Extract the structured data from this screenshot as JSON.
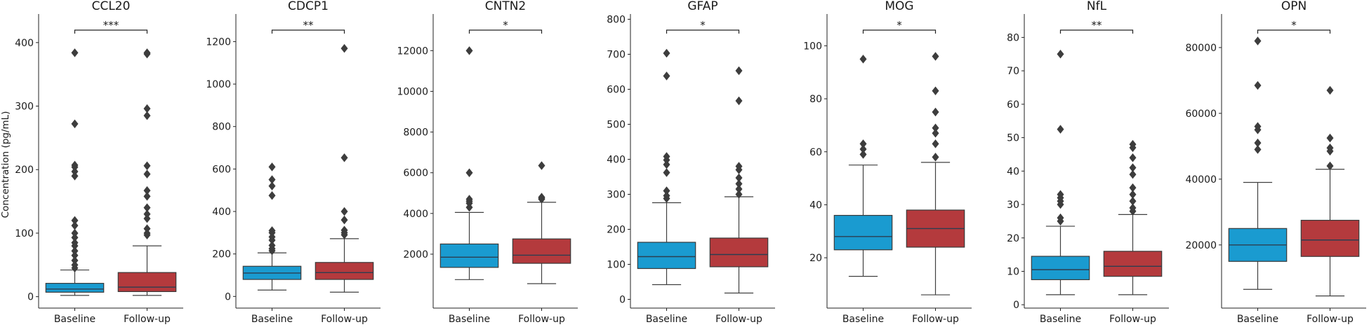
{
  "chart_data": {
    "type": "box",
    "ylabel": "Concentration (pg/mL)",
    "group_labels": [
      "Baseline",
      "Follow-up"
    ],
    "colors": {
      "Baseline": "#1a9bd0",
      "Follow-up": "#b43a3d",
      "median": "#2c3e50",
      "whisker": "#404040",
      "outlier": "#3d3d3d"
    },
    "panels": [
      {
        "title": "CCL20",
        "significance": "***",
        "ylim": [
          -18,
          445
        ],
        "yticks": [
          0,
          100,
          200,
          300,
          400
        ],
        "boxes": [
          {
            "group": "Baseline",
            "whisker_low": 2,
            "q1": 7,
            "median": 12,
            "q3": 21,
            "whisker_high": 42,
            "outliers": [
              384,
              272,
              207,
              204,
              197,
              190,
              120,
              112,
              100,
              93,
              85,
              80,
              72,
              65,
              57,
              50,
              45
            ]
          },
          {
            "group": "Follow-up",
            "whisker_low": 2,
            "q1": 8,
            "median": 15,
            "q3": 38,
            "whisker_high": 80,
            "outliers": [
              384,
              382,
              296,
              285,
              206,
              193,
              167,
              158,
              140,
              130,
              123,
              107,
              100,
              97
            ]
          }
        ]
      },
      {
        "title": "CDCP1",
        "significance": "**",
        "ylim": [
          -55,
          1330
        ],
        "yticks": [
          0,
          200,
          400,
          600,
          800,
          1000,
          1200
        ],
        "boxes": [
          {
            "group": "Baseline",
            "whisker_low": 30,
            "q1": 80,
            "median": 110,
            "q3": 142,
            "whisker_high": 205,
            "outliers": [
              610,
              550,
              520,
              475,
              310,
              300,
              280,
              265,
              240,
              225,
              215
            ]
          },
          {
            "group": "Follow-up",
            "whisker_low": 20,
            "q1": 80,
            "median": 112,
            "q3": 160,
            "whisker_high": 272,
            "outliers": [
              1168,
              653,
              400,
              360,
              312,
              300,
              290
            ]
          }
        ]
      },
      {
        "title": "CNTN2",
        "significance": "*",
        "ylim": [
          -650,
          13800
        ],
        "yticks": [
          2000,
          4000,
          6000,
          8000,
          10000,
          12000
        ],
        "boxes": [
          {
            "group": "Baseline",
            "whisker_low": 750,
            "q1": 1350,
            "median": 1850,
            "q3": 2500,
            "whisker_high": 4050,
            "outliers": [
              12000,
              6000,
              4700,
              4600,
              4500,
              4300
            ]
          },
          {
            "group": "Follow-up",
            "whisker_low": 550,
            "q1": 1550,
            "median": 1950,
            "q3": 2750,
            "whisker_high": 4550,
            "outliers": [
              6350,
              4800,
              4750,
              4700
            ]
          }
        ]
      },
      {
        "title": "GFAP",
        "significance": "*",
        "ylim": [
          -25,
          815
        ],
        "yticks": [
          0,
          100,
          200,
          300,
          400,
          500,
          600,
          700,
          800
        ],
        "boxes": [
          {
            "group": "Baseline",
            "whisker_low": 42,
            "q1": 88,
            "median": 122,
            "q3": 163,
            "whisker_high": 276,
            "outliers": [
              703,
              638,
              408,
              398,
              385,
              362,
              310,
              296,
              288
            ]
          },
          {
            "group": "Follow-up",
            "whisker_low": 18,
            "q1": 93,
            "median": 128,
            "q3": 175,
            "whisker_high": 293,
            "outliers": [
              653,
              567,
              380,
              370,
              347,
              330,
              315,
              300
            ]
          }
        ]
      },
      {
        "title": "MOG",
        "significance": "*",
        "ylim": [
          1,
          112
        ],
        "yticks": [
          20,
          40,
          60,
          80,
          100
        ],
        "boxes": [
          {
            "group": "Baseline",
            "whisker_low": 13,
            "q1": 23,
            "median": 28,
            "q3": 36,
            "whisker_high": 55,
            "outliers": [
              95,
              63,
              61,
              59
            ]
          },
          {
            "group": "Follow-up",
            "whisker_low": 6,
            "q1": 24,
            "median": 31,
            "q3": 38,
            "whisker_high": 56,
            "outliers": [
              96,
              83,
              75,
              69,
              67,
              63,
              58
            ]
          }
        ]
      },
      {
        "title": "NfL",
        "significance": "**",
        "ylim": [
          -1,
          87
        ],
        "yticks": [
          0,
          10,
          20,
          30,
          40,
          50,
          60,
          70,
          80
        ],
        "boxes": [
          {
            "group": "Baseline",
            "whisker_low": 3,
            "q1": 7.5,
            "median": 10.5,
            "q3": 14.5,
            "whisker_high": 23.5,
            "outliers": [
              75,
              52.5,
              33,
              32,
              31,
              30,
              26,
              25
            ]
          },
          {
            "group": "Follow-up",
            "whisker_low": 3,
            "q1": 8.5,
            "median": 11.5,
            "q3": 16,
            "whisker_high": 27,
            "outliers": [
              48,
              47,
              44,
              41,
              39,
              35,
              33,
              31,
              29,
              28
            ]
          }
        ]
      },
      {
        "title": "OPN",
        "significance": "*",
        "ylim": [
          800,
          90200
        ],
        "yticks": [
          20000,
          40000,
          60000,
          80000
        ],
        "boxes": [
          {
            "group": "Baseline",
            "whisker_low": 6500,
            "q1": 15000,
            "median": 20000,
            "q3": 25000,
            "whisker_high": 39000,
            "outliers": [
              82000,
              68500,
              56000,
              55000,
              51000,
              49000
            ]
          },
          {
            "group": "Follow-up",
            "whisker_low": 4500,
            "q1": 16500,
            "median": 21500,
            "q3": 27500,
            "whisker_high": 43000,
            "outliers": [
              67000,
              52500,
              49500,
              48500,
              44000
            ]
          }
        ]
      }
    ]
  }
}
